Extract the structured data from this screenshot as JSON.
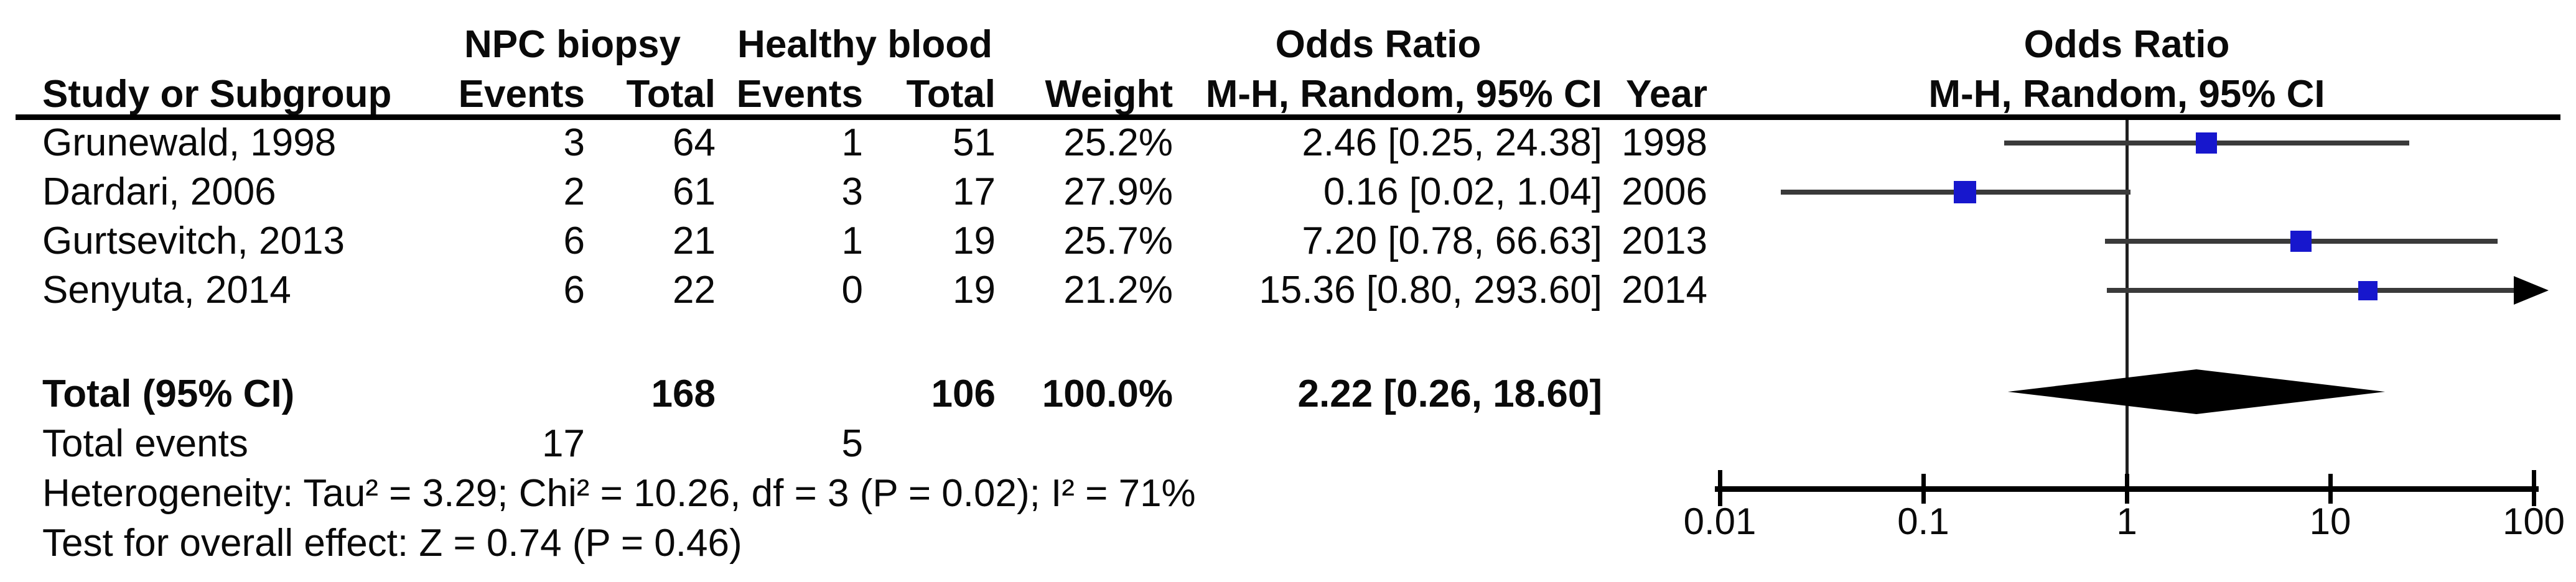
{
  "table": {
    "group_headers": {
      "npc": "NPC biopsy",
      "healthy": "Healthy blood",
      "or_left": "Odds Ratio",
      "or_right": "Odds Ratio"
    },
    "column_headers": {
      "study": "Study or Subgroup",
      "events1": "Events",
      "total1": "Total",
      "events2": "Events",
      "total2": "Total",
      "weight": "Weight",
      "mh_left": "M-H, Random, 95% CI",
      "year": "Year",
      "mh_right": "M-H, Random, 95% CI"
    },
    "rows": [
      {
        "study": "Grunewald, 1998",
        "events1": "3",
        "total1": "64",
        "events2": "1",
        "total2": "51",
        "weight": "25.2%",
        "or_ci": "2.46 [0.25, 24.38]",
        "year": "1998"
      },
      {
        "study": "Dardari, 2006",
        "events1": "2",
        "total1": "61",
        "events2": "3",
        "total2": "17",
        "weight": "27.9%",
        "or_ci": "0.16 [0.02, 1.04]",
        "year": "2006"
      },
      {
        "study": "Gurtsevitch, 2013",
        "events1": "6",
        "total1": "21",
        "events2": "1",
        "total2": "19",
        "weight": "25.7%",
        "or_ci": "7.20 [0.78, 66.63]",
        "year": "2013"
      },
      {
        "study": "Senyuta, 2014",
        "events1": "6",
        "total1": "22",
        "events2": "0",
        "total2": "19",
        "weight": "21.2%",
        "or_ci": "15.36 [0.80, 293.60]",
        "year": "2014"
      }
    ],
    "total_row": {
      "label": "Total (95% CI)",
      "total1": "168",
      "total2": "106",
      "weight": "100.0%",
      "or_ci": "2.22 [0.26, 18.60]"
    },
    "total_events": {
      "label": "Total events",
      "events1": "17",
      "events2": "5"
    },
    "heterogeneity": "Heterogeneity: Tau² = 3.29; Chi² = 10.26, df = 3 (P = 0.02); I² = 71%",
    "overall_effect": "Test for overall effect: Z = 0.74 (P = 0.46)"
  },
  "chart_data": {
    "type": "forest",
    "effect_measure": "Odds Ratio",
    "method": "M-H, Random, 95% CI",
    "scale": "log10",
    "axis": {
      "min": 0.01,
      "max": 100,
      "ticks": [
        0.01,
        0.1,
        1,
        10,
        100
      ],
      "tick_labels": [
        "0.01",
        "0.1",
        "1",
        "10",
        "100"
      ]
    },
    "studies": [
      {
        "name": "Grunewald, 1998",
        "or": 2.46,
        "ci_low": 0.25,
        "ci_high": 24.38,
        "weight_pct": 25.2,
        "year": 1998
      },
      {
        "name": "Dardari, 2006",
        "or": 0.16,
        "ci_low": 0.02,
        "ci_high": 1.04,
        "weight_pct": 27.9,
        "year": 2006
      },
      {
        "name": "Gurtsevitch, 2013",
        "or": 7.2,
        "ci_low": 0.78,
        "ci_high": 66.63,
        "weight_pct": 25.7,
        "year": 2013
      },
      {
        "name": "Senyuta, 2014",
        "or": 15.36,
        "ci_low": 0.8,
        "ci_high": 293.6,
        "weight_pct": 21.2,
        "year": 2014
      }
    ],
    "total": {
      "or": 2.22,
      "ci_low": 0.26,
      "ci_high": 18.6,
      "weight_pct": 100.0
    },
    "events_total": {
      "group1_events": 17,
      "group1_total": 168,
      "group2_events": 5,
      "group2_total": 106
    },
    "heterogeneity": {
      "tau2": 3.29,
      "chi2": 10.26,
      "df": 3,
      "p": 0.02,
      "i2_pct": 71
    },
    "overall_effect": {
      "z": 0.74,
      "p": 0.46
    }
  },
  "colors": {
    "marker_blue": "#1717cd",
    "ci_line": "#3a3a3a",
    "diamond": "#000000",
    "axis": "#000000",
    "text": "#0a0a0a"
  }
}
